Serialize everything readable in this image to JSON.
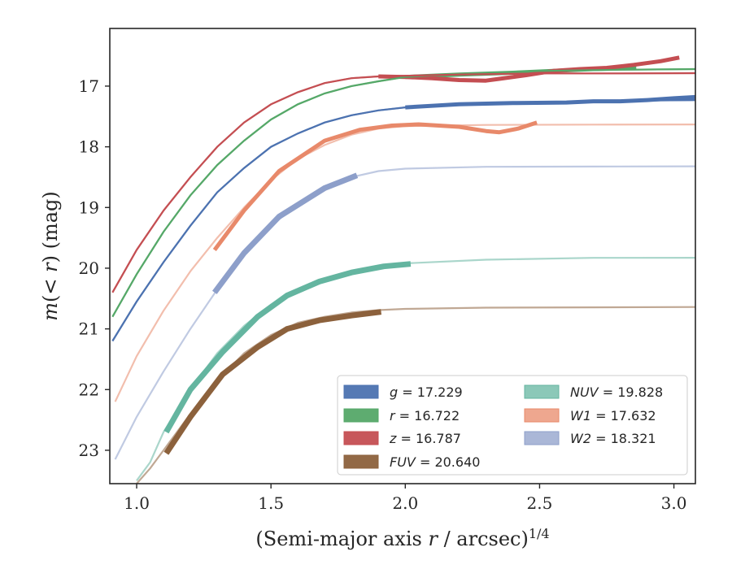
{
  "chart_data": {
    "type": "line",
    "xlabel": "(Semi-major axis r / arcsec)^1/4",
    "ylabel": "m(< r) (mag)",
    "xlim": [
      0.9,
      3.08
    ],
    "ylim": [
      23.55,
      16.05
    ],
    "y_inverted": true,
    "grid": false,
    "legend_position": "lower-right",
    "x_ticks": [
      "1.0",
      "1.5",
      "2.0",
      "2.5",
      "3.0"
    ],
    "y_ticks": [
      "17",
      "18",
      "19",
      "20",
      "21",
      "22",
      "23"
    ],
    "series": [
      {
        "name": "g = 17.229",
        "legend_var": "g",
        "legend_value": "= 17.229",
        "color": "#4C72B0",
        "model": [
          [
            0.91,
            21.2
          ],
          [
            1.0,
            20.55
          ],
          [
            1.1,
            19.9
          ],
          [
            1.2,
            19.3
          ],
          [
            1.3,
            18.75
          ],
          [
            1.4,
            18.35
          ],
          [
            1.5,
            18.0
          ],
          [
            1.6,
            17.78
          ],
          [
            1.7,
            17.6
          ],
          [
            1.8,
            17.48
          ],
          [
            1.9,
            17.4
          ],
          [
            2.0,
            17.35
          ],
          [
            2.2,
            17.31
          ],
          [
            2.5,
            17.27
          ],
          [
            2.8,
            17.24
          ],
          [
            3.08,
            17.23
          ]
        ],
        "observed": [
          [
            2.0,
            17.35
          ],
          [
            2.2,
            17.3
          ],
          [
            2.4,
            17.28
          ],
          [
            2.6,
            17.27
          ],
          [
            2.7,
            17.25
          ],
          [
            2.8,
            17.25
          ],
          [
            2.9,
            17.23
          ],
          [
            3.0,
            17.2
          ],
          [
            3.08,
            17.18
          ]
        ]
      },
      {
        "name": "r = 16.722",
        "legend_var": "r",
        "legend_value": "= 16.722",
        "color": "#55A868",
        "model": [
          [
            0.91,
            20.8
          ],
          [
            1.0,
            20.1
          ],
          [
            1.1,
            19.4
          ],
          [
            1.2,
            18.8
          ],
          [
            1.3,
            18.3
          ],
          [
            1.4,
            17.9
          ],
          [
            1.5,
            17.55
          ],
          [
            1.6,
            17.3
          ],
          [
            1.7,
            17.12
          ],
          [
            1.8,
            17.0
          ],
          [
            1.9,
            16.92
          ],
          [
            2.0,
            16.85
          ],
          [
            2.2,
            16.8
          ],
          [
            2.5,
            16.75
          ],
          [
            2.8,
            16.73
          ],
          [
            3.08,
            16.72
          ]
        ],
        "observed": [
          [
            2.0,
            16.85
          ],
          [
            2.2,
            16.81
          ],
          [
            2.4,
            16.78
          ],
          [
            2.55,
            16.75
          ],
          [
            2.7,
            16.72
          ],
          [
            2.86,
            16.7
          ]
        ]
      },
      {
        "name": "z = 16.787",
        "legend_var": "z",
        "legend_value": "= 16.787",
        "color": "#C44E52",
        "model": [
          [
            0.91,
            20.4
          ],
          [
            1.0,
            19.7
          ],
          [
            1.1,
            19.05
          ],
          [
            1.2,
            18.5
          ],
          [
            1.3,
            18.0
          ],
          [
            1.4,
            17.6
          ],
          [
            1.5,
            17.3
          ],
          [
            1.6,
            17.1
          ],
          [
            1.7,
            16.95
          ],
          [
            1.8,
            16.87
          ],
          [
            1.9,
            16.84
          ],
          [
            2.0,
            16.83
          ],
          [
            2.2,
            16.81
          ],
          [
            2.5,
            16.79
          ],
          [
            2.8,
            16.79
          ],
          [
            3.08,
            16.787
          ]
        ],
        "observed": [
          [
            1.9,
            16.84
          ],
          [
            2.0,
            16.85
          ],
          [
            2.1,
            16.87
          ],
          [
            2.2,
            16.9
          ],
          [
            2.3,
            16.91
          ],
          [
            2.35,
            16.88
          ],
          [
            2.45,
            16.82
          ],
          [
            2.55,
            16.75
          ],
          [
            2.65,
            16.72
          ],
          [
            2.75,
            16.7
          ],
          [
            2.85,
            16.65
          ],
          [
            2.95,
            16.59
          ],
          [
            3.02,
            16.53
          ]
        ]
      },
      {
        "name": "FUV = 20.640",
        "legend_var": "FUV",
        "legend_value": "= 20.640",
        "color": "#8C613C",
        "model": [
          [
            1.0,
            23.55
          ],
          [
            1.05,
            23.3
          ],
          [
            1.1,
            23.0
          ],
          [
            1.2,
            22.4
          ],
          [
            1.3,
            21.85
          ],
          [
            1.4,
            21.4
          ],
          [
            1.5,
            21.1
          ],
          [
            1.6,
            20.9
          ],
          [
            1.7,
            20.8
          ],
          [
            1.8,
            20.73
          ],
          [
            1.9,
            20.69
          ],
          [
            2.0,
            20.67
          ],
          [
            2.3,
            20.65
          ],
          [
            2.7,
            20.645
          ],
          [
            3.08,
            20.64
          ]
        ],
        "observed": [
          [
            1.11,
            23.05
          ],
          [
            1.2,
            22.45
          ],
          [
            1.32,
            21.75
          ],
          [
            1.45,
            21.3
          ],
          [
            1.56,
            21.0
          ],
          [
            1.68,
            20.86
          ],
          [
            1.8,
            20.78
          ],
          [
            1.91,
            20.72
          ]
        ]
      },
      {
        "name": "NUV = 19.828",
        "legend_var": "NUV",
        "legend_value": "= 19.828",
        "color": "#64B5A0",
        "model": [
          [
            1.0,
            23.5
          ],
          [
            1.05,
            23.2
          ],
          [
            1.1,
            22.7
          ],
          [
            1.2,
            22.0
          ],
          [
            1.3,
            21.4
          ],
          [
            1.4,
            20.95
          ],
          [
            1.5,
            20.6
          ],
          [
            1.6,
            20.35
          ],
          [
            1.7,
            20.17
          ],
          [
            1.8,
            20.05
          ],
          [
            1.9,
            19.97
          ],
          [
            2.0,
            19.92
          ],
          [
            2.3,
            19.86
          ],
          [
            2.7,
            19.83
          ],
          [
            3.08,
            19.828
          ]
        ],
        "observed": [
          [
            1.11,
            22.7
          ],
          [
            1.2,
            22.0
          ],
          [
            1.32,
            21.38
          ],
          [
            1.45,
            20.8
          ],
          [
            1.56,
            20.45
          ],
          [
            1.68,
            20.22
          ],
          [
            1.8,
            20.07
          ],
          [
            1.92,
            19.97
          ],
          [
            2.02,
            19.93
          ]
        ]
      },
      {
        "name": "W1 = 17.632",
        "legend_var": "W1",
        "legend_value": "= 17.632",
        "color": "#E8896A",
        "model": [
          [
            0.92,
            22.2
          ],
          [
            1.0,
            21.45
          ],
          [
            1.1,
            20.7
          ],
          [
            1.2,
            20.05
          ],
          [
            1.3,
            19.5
          ],
          [
            1.4,
            19.0
          ],
          [
            1.5,
            18.55
          ],
          [
            1.6,
            18.2
          ],
          [
            1.7,
            17.97
          ],
          [
            1.8,
            17.8
          ],
          [
            1.9,
            17.7
          ],
          [
            2.0,
            17.66
          ],
          [
            2.3,
            17.64
          ],
          [
            2.7,
            17.635
          ],
          [
            3.08,
            17.632
          ]
        ],
        "observed": [
          [
            1.29,
            19.7
          ],
          [
            1.4,
            19.05
          ],
          [
            1.53,
            18.4
          ],
          [
            1.7,
            17.9
          ],
          [
            1.83,
            17.72
          ],
          [
            1.95,
            17.65
          ],
          [
            2.05,
            17.63
          ],
          [
            2.2,
            17.67
          ],
          [
            2.3,
            17.74
          ],
          [
            2.35,
            17.76
          ],
          [
            2.42,
            17.7
          ],
          [
            2.49,
            17.6
          ]
        ]
      },
      {
        "name": "W2 = 18.321",
        "legend_var": "W2",
        "legend_value": "= 18.321",
        "color": "#8D9FCA",
        "model": [
          [
            0.92,
            23.15
          ],
          [
            1.0,
            22.45
          ],
          [
            1.1,
            21.7
          ],
          [
            1.2,
            21.0
          ],
          [
            1.3,
            20.35
          ],
          [
            1.4,
            19.75
          ],
          [
            1.5,
            19.3
          ],
          [
            1.6,
            18.95
          ],
          [
            1.7,
            18.7
          ],
          [
            1.8,
            18.5
          ],
          [
            1.9,
            18.4
          ],
          [
            2.0,
            18.36
          ],
          [
            2.3,
            18.33
          ],
          [
            2.7,
            18.325
          ],
          [
            3.08,
            18.321
          ]
        ],
        "observed": [
          [
            1.29,
            20.4
          ],
          [
            1.4,
            19.75
          ],
          [
            1.53,
            19.15
          ],
          [
            1.7,
            18.68
          ],
          [
            1.82,
            18.47
          ]
        ]
      }
    ]
  }
}
